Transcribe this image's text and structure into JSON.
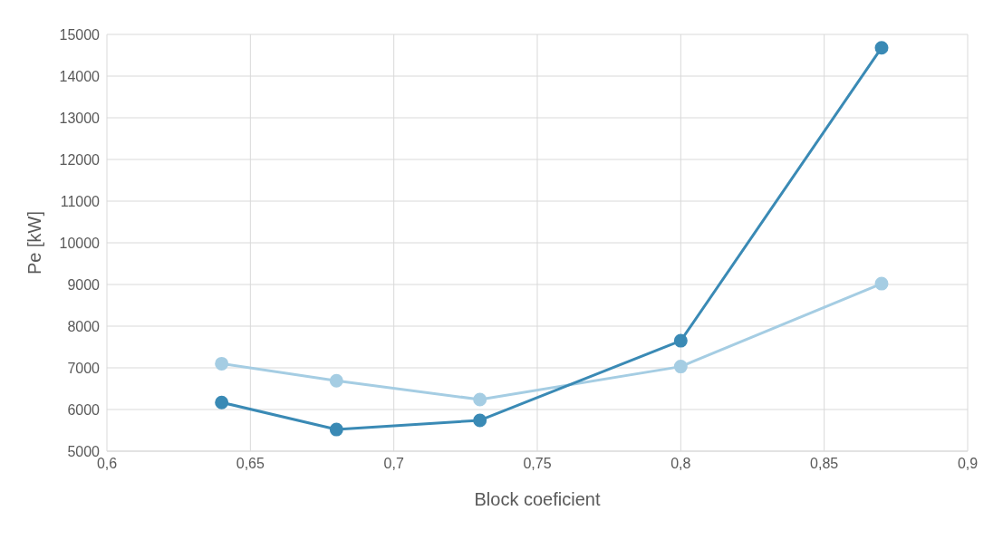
{
  "chart_data": {
    "type": "line",
    "xlabel": "Block coeficient",
    "ylabel": "Pe [kW]",
    "x": [
      0.64,
      0.68,
      0.73,
      0.8,
      0.87
    ],
    "series": [
      {
        "color": "#a5cde3",
        "values": [
          7100,
          6690,
          6240,
          7030,
          9020
        ]
      },
      {
        "color": "#3a8ab5",
        "values": [
          6170,
          5520,
          5740,
          7650,
          14680
        ]
      }
    ],
    "xlim": [
      0.6,
      0.9
    ],
    "xticks": [
      {
        "value": 0.6,
        "label": "0,6"
      },
      {
        "value": 0.65,
        "label": "0,65"
      },
      {
        "value": 0.7,
        "label": "0,7"
      },
      {
        "value": 0.75,
        "label": "0,75"
      },
      {
        "value": 0.8,
        "label": "0,8"
      },
      {
        "value": 0.85,
        "label": "0,85"
      },
      {
        "value": 0.9,
        "label": "0,9"
      }
    ],
    "ylim": [
      5000,
      15000
    ],
    "yticks": [
      5000,
      6000,
      7000,
      8000,
      9000,
      10000,
      11000,
      12000,
      13000,
      14000,
      15000
    ],
    "grid": true,
    "marker": "circle",
    "line_style": "solid"
  }
}
